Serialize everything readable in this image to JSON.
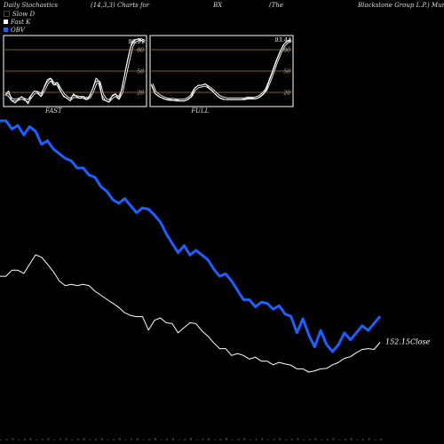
{
  "header": {
    "c1": "Daily Stochastics",
    "c2": "(14,3,3) Charts for",
    "c3": "BX",
    "c4": "(The",
    "c5": "Blackstone Group L.P.) Munafa"
  },
  "legend": [
    {
      "label": "Slow D",
      "color": "#000000"
    },
    {
      "label": "Fast K",
      "color": "#ffffff"
    },
    {
      "label": "OBV",
      "color": "#1f5fff"
    }
  ],
  "colors": {
    "obv": "#1f5fff",
    "close": "#ffffff",
    "level_line": "#8b5a1a",
    "panel_border": "#ffffff"
  },
  "chart_data": [
    {
      "type": "line",
      "title": "FAST",
      "ylim": [
        0,
        100
      ],
      "yticks": [
        "80",
        "50",
        "20"
      ],
      "last_value_label": "90.91",
      "series": [
        {
          "name": "Fast K",
          "values": [
            16,
            22,
            8,
            5,
            10,
            14,
            10,
            4,
            16,
            22,
            20,
            14,
            28,
            38,
            40,
            30,
            34,
            22,
            14,
            12,
            8,
            18,
            14,
            12,
            14,
            10,
            14,
            26,
            40,
            35,
            10,
            8,
            6,
            16,
            18,
            10,
            25,
            50,
            72,
            90,
            94,
            95,
            93,
            91
          ]
        },
        {
          "name": "Slow D",
          "values": [
            18,
            16,
            10,
            9,
            10,
            12,
            10,
            8,
            14,
            20,
            20,
            16,
            24,
            33,
            38,
            32,
            32,
            24,
            17,
            13,
            10,
            14,
            14,
            13,
            13,
            11,
            13,
            22,
            34,
            34,
            17,
            10,
            8,
            13,
            16,
            12,
            21,
            43,
            64,
            84,
            92,
            94,
            94,
            92
          ]
        }
      ]
    },
    {
      "type": "line",
      "title": "FULL",
      "ylim": [
        0,
        100
      ],
      "yticks": [
        "80",
        "50",
        "20"
      ],
      "last_value_label": "93.44",
      "series": [
        {
          "name": "Fast K",
          "values": [
            30,
            18,
            14,
            12,
            10,
            10,
            9,
            9,
            8,
            8,
            10,
            14,
            26,
            30,
            30,
            32,
            26,
            22,
            16,
            12,
            10,
            10,
            10,
            10,
            10,
            10,
            11,
            12,
            12,
            11,
            13,
            17,
            24,
            38,
            52,
            66,
            78,
            88,
            92,
            94
          ]
        },
        {
          "name": "Slow D",
          "values": [
            32,
            20,
            16,
            13,
            11,
            10,
            10,
            9,
            9,
            9,
            11,
            15,
            24,
            28,
            29,
            30,
            27,
            23,
            18,
            14,
            12,
            11,
            11,
            11,
            11,
            11,
            11,
            12,
            12,
            12,
            14,
            18,
            24,
            36,
            50,
            64,
            76,
            86,
            91,
            93
          ]
        }
      ]
    },
    {
      "type": "line",
      "title": "",
      "last_value_label": "152.15",
      "last_value_suffix": "Close",
      "series": [
        {
          "name": "OBV",
          "values": [
            100,
            100,
            93,
            96,
            88,
            95,
            91,
            80,
            83,
            76,
            72,
            68,
            66,
            60,
            60,
            54,
            52,
            44,
            40,
            33,
            30,
            34,
            28,
            22,
            26,
            25,
            20,
            14,
            4,
            -4,
            -12,
            -6,
            -14,
            -10,
            -14,
            -18,
            -26,
            -32,
            -30,
            -36,
            -44,
            -52,
            -52,
            -58,
            -54,
            -55,
            -60,
            -57,
            -64,
            -66,
            -80,
            -68,
            -82,
            -92,
            -78,
            -90,
            -96,
            -90,
            -80,
            -86,
            -80,
            -74,
            -78,
            -72,
            -66
          ]
        },
        {
          "name": "Close",
          "values": [
            168.5,
            168.5,
            170,
            170,
            169.2,
            171.5,
            173.8,
            173.2,
            171.5,
            169.6,
            167.3,
            166.2,
            166.5,
            166.2,
            166.5,
            166.2,
            164.8,
            163.8,
            162.8,
            161.8,
            160.8,
            159.5,
            158.8,
            158.5,
            158.5,
            155.2,
            157.6,
            158.2,
            157.0,
            156.8,
            154.5,
            155.8,
            157.0,
            156.8,
            155.0,
            153.7,
            152.0,
            150.6,
            150.6,
            148.9,
            149.4,
            148.9,
            148.0,
            148.5,
            147.5,
            147.5,
            146.6,
            147.2,
            146.8,
            146.5,
            145.6,
            145.6,
            144.8,
            145.1,
            145.6,
            145.7,
            146.6,
            147.2,
            148.2,
            148.6,
            149.6,
            150.4,
            150.6,
            150.4,
            152.15
          ]
        }
      ]
    }
  ]
}
